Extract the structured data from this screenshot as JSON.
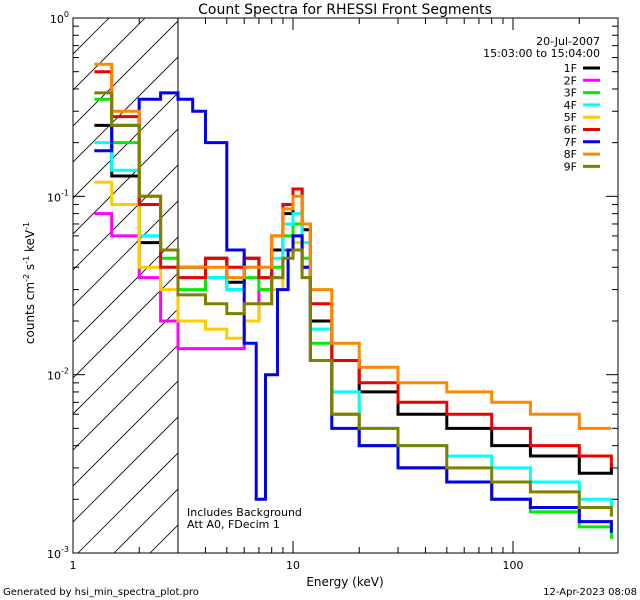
{
  "chart_data": {
    "type": "line",
    "title": "Count Spectra for RHESSI Front Segments",
    "xlabel": "Energy (keV)",
    "ylabel": "counts cm-2 s-1 keV-1",
    "xscale": "log",
    "yscale": "log",
    "xlim": [
      1.0,
      300
    ],
    "ylim": [
      0.001,
      1.0
    ],
    "x_ticks": [
      {
        "value": 1,
        "label": "1"
      },
      {
        "value": 10,
        "label": "10"
      },
      {
        "value": 100,
        "label": "100"
      }
    ],
    "y_ticks": [
      {
        "value": 1,
        "base": "10",
        "exp": "0"
      },
      {
        "value": 0.1,
        "base": "10",
        "exp": "-1"
      },
      {
        "value": 0.01,
        "base": "10",
        "exp": "-2"
      },
      {
        "value": 0.001,
        "base": "10",
        "exp": "-3"
      }
    ],
    "ylabel_parts": {
      "pre": "counts cm",
      "e1": "-2",
      "mid": " s",
      "e2": "-1",
      "mid2": " keV",
      "e3": "-1"
    },
    "background_region": {
      "x_from": 1.0,
      "x_to": 3.0,
      "note": "hatched region below 3 keV"
    },
    "date": "20-Jul-2007",
    "time_range": "15:03:00 to 15:04:00",
    "annotation_lines": [
      "Includes Background",
      "Att A0, FDecim 1"
    ],
    "footer_left": "Generated by hsi_min_spectra_plot.pro",
    "footer_right": "12-Apr-2023 08:08",
    "legend_position": "top-right",
    "series": [
      {
        "name": "1F",
        "color": "#000000",
        "points": [
          [
            1.25,
            0.25
          ],
          [
            1.5,
            0.13
          ],
          [
            2.0,
            0.055
          ],
          [
            2.5,
            0.05
          ],
          [
            3.0,
            0.04
          ],
          [
            4.0,
            0.045
          ],
          [
            5.0,
            0.033
          ],
          [
            6.0,
            0.045
          ],
          [
            7.0,
            0.035
          ],
          [
            8.0,
            0.05
          ],
          [
            9.0,
            0.08
          ],
          [
            10.0,
            0.11
          ],
          [
            11.0,
            0.065
          ],
          [
            12.0,
            0.02
          ],
          [
            15.0,
            0.012
          ],
          [
            20.0,
            0.008
          ],
          [
            30.0,
            0.006
          ],
          [
            50.0,
            0.005
          ],
          [
            80.0,
            0.004
          ],
          [
            120.0,
            0.0035
          ],
          [
            200.0,
            0.0028
          ],
          [
            280.0,
            0.0032
          ]
        ]
      },
      {
        "name": "2F",
        "color": "#ff00ff",
        "points": [
          [
            1.25,
            0.08
          ],
          [
            1.5,
            0.06
          ],
          [
            2.0,
            0.035
          ],
          [
            2.5,
            0.02
          ],
          [
            3.0,
            0.014
          ],
          [
            4.0,
            0.014
          ],
          [
            5.0,
            0.014
          ],
          [
            6.0,
            0.02
          ],
          [
            7.0,
            0.03
          ],
          [
            8.0,
            0.035
          ],
          [
            9.0,
            0.05
          ],
          [
            10.0,
            0.06
          ],
          [
            11.0,
            0.04
          ],
          [
            12.0,
            0.012
          ],
          [
            15.0,
            0.006
          ],
          [
            20.0,
            0.004
          ],
          [
            30.0,
            0.003
          ],
          [
            50.0,
            0.0025
          ],
          [
            80.0,
            0.002
          ],
          [
            120.0,
            0.0018
          ],
          [
            200.0,
            0.0015
          ],
          [
            280.0,
            0.0014
          ]
        ]
      },
      {
        "name": "3F",
        "color": "#00ee00",
        "points": [
          [
            1.25,
            0.35
          ],
          [
            1.5,
            0.2
          ],
          [
            2.0,
            0.06
          ],
          [
            2.5,
            0.045
          ],
          [
            3.0,
            0.03
          ],
          [
            4.0,
            0.035
          ],
          [
            5.0,
            0.03
          ],
          [
            6.0,
            0.035
          ],
          [
            7.0,
            0.03
          ],
          [
            8.0,
            0.04
          ],
          [
            9.0,
            0.06
          ],
          [
            10.0,
            0.07
          ],
          [
            11.0,
            0.045
          ],
          [
            12.0,
            0.015
          ],
          [
            15.0,
            0.006
          ],
          [
            20.0,
            0.004
          ],
          [
            30.0,
            0.003
          ],
          [
            50.0,
            0.0025
          ],
          [
            80.0,
            0.002
          ],
          [
            120.0,
            0.0017
          ],
          [
            200.0,
            0.0014
          ],
          [
            280.0,
            0.0012
          ]
        ]
      },
      {
        "name": "4F",
        "color": "#00ffff",
        "points": [
          [
            1.25,
            0.2
          ],
          [
            1.5,
            0.14
          ],
          [
            2.0,
            0.06
          ],
          [
            2.5,
            0.04
          ],
          [
            3.0,
            0.035
          ],
          [
            4.0,
            0.035
          ],
          [
            5.0,
            0.03
          ],
          [
            6.0,
            0.04
          ],
          [
            7.0,
            0.035
          ],
          [
            8.0,
            0.045
          ],
          [
            9.0,
            0.07
          ],
          [
            10.0,
            0.08
          ],
          [
            11.0,
            0.055
          ],
          [
            12.0,
            0.018
          ],
          [
            15.0,
            0.008
          ],
          [
            20.0,
            0.005
          ],
          [
            30.0,
            0.004
          ],
          [
            50.0,
            0.0035
          ],
          [
            80.0,
            0.003
          ],
          [
            120.0,
            0.0025
          ],
          [
            200.0,
            0.002
          ],
          [
            280.0,
            0.0018
          ]
        ]
      },
      {
        "name": "5F",
        "color": "#ffcc00",
        "points": [
          [
            1.25,
            0.12
          ],
          [
            1.5,
            0.09
          ],
          [
            2.0,
            0.04
          ],
          [
            2.5,
            0.03
          ],
          [
            3.0,
            0.02
          ],
          [
            4.0,
            0.018
          ],
          [
            5.0,
            0.016
          ],
          [
            6.0,
            0.02
          ],
          [
            7.0,
            0.025
          ],
          [
            8.0,
            0.03
          ],
          [
            9.0,
            0.045
          ],
          [
            10.0,
            0.055
          ],
          [
            11.0,
            0.035
          ],
          [
            12.0,
            0.012
          ],
          [
            15.0,
            0.006
          ],
          [
            20.0,
            0.004
          ],
          [
            30.0,
            0.003
          ],
          [
            50.0,
            0.0025
          ],
          [
            80.0,
            0.002
          ],
          [
            120.0,
            0.0018
          ],
          [
            200.0,
            0.0015
          ],
          [
            280.0,
            0.0014
          ]
        ]
      },
      {
        "name": "6F",
        "color": "#ee0000",
        "points": [
          [
            1.25,
            0.5
          ],
          [
            1.5,
            0.28
          ],
          [
            2.0,
            0.09
          ],
          [
            2.5,
            0.04
          ],
          [
            3.0,
            0.035
          ],
          [
            4.0,
            0.045
          ],
          [
            5.0,
            0.04
          ],
          [
            6.0,
            0.045
          ],
          [
            7.0,
            0.035
          ],
          [
            8.0,
            0.06
          ],
          [
            9.0,
            0.09
          ],
          [
            10.0,
            0.11
          ],
          [
            11.0,
            0.07
          ],
          [
            12.0,
            0.025
          ],
          [
            15.0,
            0.012
          ],
          [
            20.0,
            0.009
          ],
          [
            30.0,
            0.007
          ],
          [
            50.0,
            0.006
          ],
          [
            80.0,
            0.005
          ],
          [
            120.0,
            0.004
          ],
          [
            200.0,
            0.0035
          ],
          [
            280.0,
            0.003
          ]
        ]
      },
      {
        "name": "7F",
        "color": "#0000ee",
        "points": [
          [
            1.25,
            0.18
          ],
          [
            1.5,
            0.25
          ],
          [
            2.0,
            0.35
          ],
          [
            2.5,
            0.38
          ],
          [
            3.0,
            0.35
          ],
          [
            3.5,
            0.3
          ],
          [
            4.0,
            0.2
          ],
          [
            5.0,
            0.05
          ],
          [
            6.0,
            0.015
          ],
          [
            6.8,
            0.002
          ],
          [
            7.5,
            0.01
          ],
          [
            8.5,
            0.03
          ],
          [
            9.5,
            0.05
          ],
          [
            10.0,
            0.06
          ],
          [
            11.0,
            0.04
          ],
          [
            12.0,
            0.012
          ],
          [
            15.0,
            0.005
          ],
          [
            20.0,
            0.004
          ],
          [
            30.0,
            0.003
          ],
          [
            50.0,
            0.0025
          ],
          [
            80.0,
            0.002
          ],
          [
            120.0,
            0.0018
          ],
          [
            200.0,
            0.0015
          ],
          [
            280.0,
            0.0013
          ]
        ]
      },
      {
        "name": "8F",
        "color": "#ff8800",
        "points": [
          [
            1.25,
            0.55
          ],
          [
            1.5,
            0.3
          ],
          [
            2.0,
            0.1
          ],
          [
            2.5,
            0.05
          ],
          [
            3.0,
            0.04
          ],
          [
            4.0,
            0.04
          ],
          [
            5.0,
            0.035
          ],
          [
            6.0,
            0.04
          ],
          [
            7.0,
            0.04
          ],
          [
            8.0,
            0.06
          ],
          [
            9.0,
            0.085
          ],
          [
            10.0,
            0.1
          ],
          [
            11.0,
            0.07
          ],
          [
            12.0,
            0.03
          ],
          [
            15.0,
            0.015
          ],
          [
            20.0,
            0.011
          ],
          [
            30.0,
            0.009
          ],
          [
            50.0,
            0.008
          ],
          [
            80.0,
            0.007
          ],
          [
            120.0,
            0.006
          ],
          [
            200.0,
            0.005
          ],
          [
            280.0,
            0.005
          ]
        ]
      },
      {
        "name": "9F",
        "color": "#808000",
        "points": [
          [
            1.25,
            0.38
          ],
          [
            1.5,
            0.25
          ],
          [
            2.0,
            0.1
          ],
          [
            2.5,
            0.05
          ],
          [
            3.0,
            0.028
          ],
          [
            4.0,
            0.025
          ],
          [
            5.0,
            0.022
          ],
          [
            6.0,
            0.025
          ],
          [
            7.0,
            0.025
          ],
          [
            8.0,
            0.035
          ],
          [
            9.0,
            0.045
          ],
          [
            10.0,
            0.05
          ],
          [
            11.0,
            0.035
          ],
          [
            12.0,
            0.012
          ],
          [
            15.0,
            0.006
          ],
          [
            20.0,
            0.005
          ],
          [
            30.0,
            0.004
          ],
          [
            50.0,
            0.003
          ],
          [
            80.0,
            0.0025
          ],
          [
            120.0,
            0.0022
          ],
          [
            200.0,
            0.0018
          ],
          [
            280.0,
            0.0016
          ]
        ]
      }
    ]
  }
}
